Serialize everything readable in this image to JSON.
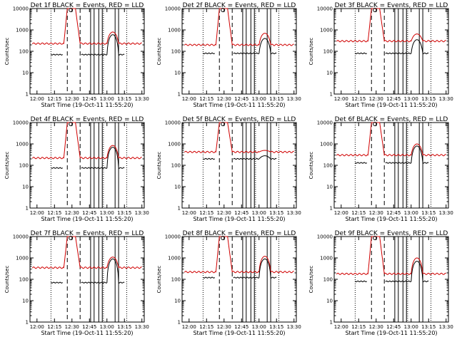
{
  "chart_data": [
    {
      "type": "line",
      "title": "Det 1f BLACK = Events, RED = LLD",
      "xlabel": "Start Time (19-Oct-11 11:55:20)",
      "ylabel": "Counts/sec",
      "x_ticks": [
        "12:00",
        "12:15",
        "12:30",
        "12:45",
        "13:00",
        "13:15",
        "13:30"
      ],
      "y_ticks": [
        "1",
        "10",
        "100",
        "1000",
        "10000"
      ],
      "yscale": "log",
      "ylim": [
        1,
        10000
      ],
      "series": [
        {
          "color": "#000000",
          "base": 70,
          "peak": 600
        },
        {
          "color": "#d00000",
          "base": 230,
          "peak": 800
        }
      ]
    },
    {
      "type": "line",
      "title": "Det 2f BLACK = Events, RED = LLD",
      "xlabel": "Start Time (19-Oct-11 11:55:20)",
      "ylabel": "Counts/sec",
      "x_ticks": [
        "12:00",
        "12:15",
        "12:30",
        "12:45",
        "13:00",
        "13:15",
        "13:30"
      ],
      "y_ticks": [
        "1",
        "10",
        "100",
        "1000",
        "10000"
      ],
      "yscale": "log",
      "ylim": [
        1,
        10000
      ],
      "series": [
        {
          "color": "#000000",
          "base": 80,
          "peak": 400
        },
        {
          "color": "#d00000",
          "base": 200,
          "peak": 700
        }
      ]
    },
    {
      "type": "line",
      "title": "Det 3f BLACK = Events, RED = LLD",
      "xlabel": "Start Time (19-Oct-11 11:55:20)",
      "ylabel": "Counts/sec",
      "x_ticks": [
        "12:00",
        "12:15",
        "12:30",
        "12:45",
        "13:00",
        "13:15",
        "13:30"
      ],
      "y_ticks": [
        "1",
        "10",
        "100",
        "1000",
        "10000"
      ],
      "yscale": "log",
      "ylim": [
        1,
        10000
      ],
      "series": [
        {
          "color": "#000000",
          "base": 80,
          "peak": 350
        },
        {
          "color": "#d00000",
          "base": 300,
          "peak": 650
        }
      ]
    },
    {
      "type": "line",
      "title": "Det 4f BLACK = Events, RED = LLD",
      "xlabel": "Start Time (19-Oct-11 11:55:20)",
      "ylabel": "Counts/sec",
      "x_ticks": [
        "12:00",
        "12:15",
        "12:30",
        "12:45",
        "13:00",
        "13:15",
        "13:30"
      ],
      "y_ticks": [
        "1",
        "10",
        "100",
        "1000",
        "10000"
      ],
      "yscale": "log",
      "ylim": [
        1,
        10000
      ],
      "series": [
        {
          "color": "#000000",
          "base": 75,
          "peak": 700
        },
        {
          "color": "#d00000",
          "base": 220,
          "peak": 850
        }
      ]
    },
    {
      "type": "line",
      "title": "Det 5f BLACK = Events, RED = LLD",
      "xlabel": "Start Time (19-Oct-11 11:55:20)",
      "ylabel": "Counts/sec",
      "x_ticks": [
        "12:00",
        "12:15",
        "12:30",
        "12:45",
        "13:00",
        "13:15",
        "13:30"
      ],
      "y_ticks": [
        "1",
        "10",
        "100",
        "1000",
        "10000"
      ],
      "yscale": "log",
      "ylim": [
        1,
        10000
      ],
      "series": [
        {
          "color": "#000000",
          "base": 200,
          "peak": 280
        },
        {
          "color": "#d00000",
          "base": 420,
          "peak": 500
        }
      ]
    },
    {
      "type": "line",
      "title": "Det 6f BLACK = Events, RED = LLD",
      "xlabel": "Start Time (19-Oct-11 11:55:20)",
      "ylabel": "Counts/sec",
      "x_ticks": [
        "12:00",
        "12:15",
        "12:30",
        "12:45",
        "13:00",
        "13:15",
        "13:30"
      ],
      "y_ticks": [
        "1",
        "10",
        "100",
        "1000",
        "10000"
      ],
      "yscale": "log",
      "ylim": [
        1,
        10000
      ],
      "series": [
        {
          "color": "#000000",
          "base": 130,
          "peak": 800
        },
        {
          "color": "#d00000",
          "base": 300,
          "peak": 1000
        }
      ]
    },
    {
      "type": "line",
      "title": "Det 7f BLACK = Events, RED = LLD",
      "xlabel": "Start Time (19-Oct-11 11:55:20)",
      "ylabel": "Counts/sec",
      "x_ticks": [
        "12:00",
        "12:15",
        "12:30",
        "12:45",
        "13:00",
        "13:15",
        "13:30"
      ],
      "y_ticks": [
        "1",
        "10",
        "100",
        "1000",
        "10000"
      ],
      "yscale": "log",
      "ylim": [
        1,
        10000
      ],
      "series": [
        {
          "color": "#000000",
          "base": 70,
          "peak": 900
        },
        {
          "color": "#d00000",
          "base": 350,
          "peak": 1100
        }
      ]
    },
    {
      "type": "line",
      "title": "Det 8f BLACK = Events, RED = LLD",
      "xlabel": "Start Time (19-Oct-11 11:55:20)",
      "ylabel": "Counts/sec",
      "x_ticks": [
        "12:00",
        "12:15",
        "12:30",
        "12:45",
        "13:00",
        "13:15",
        "13:30"
      ],
      "y_ticks": [
        "1",
        "10",
        "100",
        "1000",
        "10000"
      ],
      "yscale": "log",
      "ylim": [
        1,
        10000
      ],
      "series": [
        {
          "color": "#000000",
          "base": 120,
          "peak": 900
        },
        {
          "color": "#d00000",
          "base": 220,
          "peak": 1200
        }
      ]
    },
    {
      "type": "line",
      "title": "Det 9f BLACK = Events, RED = LLD",
      "xlabel": "Start Time (19-Oct-11 11:55:20)",
      "ylabel": "Counts/sec",
      "x_ticks": [
        "12:00",
        "12:15",
        "12:30",
        "12:45",
        "13:00",
        "13:15",
        "13:30"
      ],
      "y_ticks": [
        "1",
        "10",
        "100",
        "1000",
        "10000"
      ],
      "yscale": "log",
      "ylim": [
        1,
        10000
      ],
      "series": [
        {
          "color": "#000000",
          "base": 80,
          "peak": 700
        },
        {
          "color": "#d00000",
          "base": 180,
          "peak": 1000
        }
      ]
    }
  ]
}
